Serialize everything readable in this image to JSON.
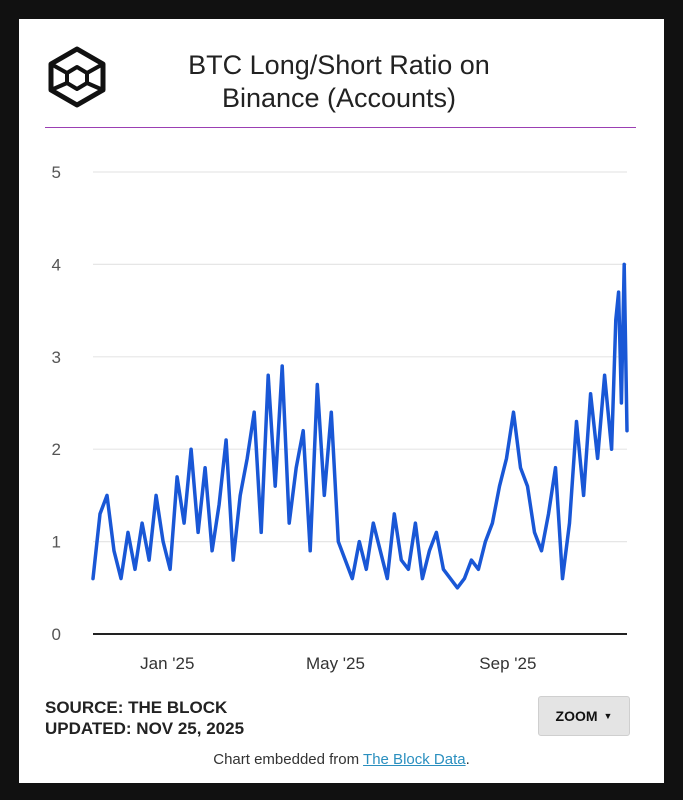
{
  "header": {
    "title_line1": "BTC Long/Short Ratio on",
    "title_line2": "Binance (Accounts)"
  },
  "logo": {
    "icon": "the-block-cube-logo-icon"
  },
  "colors": {
    "line": "#1957d6",
    "rule": "#9b3fb3",
    "grid": "#e6e6e6",
    "axis": "#222222"
  },
  "footer": {
    "source_label": "SOURCE: THE BLOCK",
    "updated_label": "UPDATED: NOV 25, 2025",
    "zoom_label": "ZOOM",
    "zoom_icon": "caret-down-icon",
    "embed_prefix": "Chart embedded from ",
    "embed_link": "The Block Data",
    "embed_suffix": "."
  },
  "chart_data": {
    "type": "line",
    "title": "BTC Long/Short Ratio on Binance (Accounts)",
    "xlabel": "",
    "ylabel": "",
    "ylim": [
      0,
      5
    ],
    "yticks": [
      "0",
      "1",
      "2",
      "3",
      "4",
      "5"
    ],
    "xticks": [
      "Jan '25",
      "May '25",
      "Sep '25"
    ],
    "x_range": [
      "2024-11-09",
      "2025-11-25"
    ],
    "grid": true,
    "legend": "none",
    "series": [
      {
        "name": "",
        "x": [
          "2024-11-09",
          "2024-11-14",
          "2024-11-19",
          "2024-11-24",
          "2024-11-29",
          "2024-12-04",
          "2024-12-09",
          "2024-12-14",
          "2024-12-19",
          "2024-12-24",
          "2024-12-29",
          "2025-01-03",
          "2025-01-08",
          "2025-01-13",
          "2025-01-18",
          "2025-01-23",
          "2025-01-28",
          "2025-02-02",
          "2025-02-07",
          "2025-02-12",
          "2025-02-17",
          "2025-02-22",
          "2025-02-27",
          "2025-03-04",
          "2025-03-09",
          "2025-03-14",
          "2025-03-19",
          "2025-03-24",
          "2025-03-29",
          "2025-04-03",
          "2025-04-08",
          "2025-04-13",
          "2025-04-18",
          "2025-04-23",
          "2025-04-28",
          "2025-05-03",
          "2025-05-08",
          "2025-05-13",
          "2025-05-18",
          "2025-05-23",
          "2025-05-28",
          "2025-06-02",
          "2025-06-07",
          "2025-06-12",
          "2025-06-17",
          "2025-06-22",
          "2025-06-27",
          "2025-07-02",
          "2025-07-07",
          "2025-07-12",
          "2025-07-17",
          "2025-07-22",
          "2025-07-27",
          "2025-08-01",
          "2025-08-06",
          "2025-08-11",
          "2025-08-16",
          "2025-08-21",
          "2025-08-26",
          "2025-08-31",
          "2025-09-05",
          "2025-09-10",
          "2025-09-15",
          "2025-09-20",
          "2025-09-25",
          "2025-09-30",
          "2025-10-05",
          "2025-10-10",
          "2025-10-15",
          "2025-10-20",
          "2025-10-25",
          "2025-10-30",
          "2025-11-04",
          "2025-11-09",
          "2025-11-14",
          "2025-11-17",
          "2025-11-19",
          "2025-11-21",
          "2025-11-23",
          "2025-11-25"
        ],
        "values": [
          0.6,
          1.3,
          1.5,
          0.9,
          0.6,
          1.1,
          0.7,
          1.2,
          0.8,
          1.5,
          1.0,
          0.7,
          1.7,
          1.2,
          2.0,
          1.1,
          1.8,
          0.9,
          1.4,
          2.1,
          0.8,
          1.5,
          1.9,
          2.4,
          1.1,
          2.8,
          1.6,
          2.9,
          1.2,
          1.8,
          2.2,
          0.9,
          2.7,
          1.5,
          2.4,
          1.0,
          0.8,
          0.6,
          1.0,
          0.7,
          1.2,
          0.9,
          0.6,
          1.3,
          0.8,
          0.7,
          1.2,
          0.6,
          0.9,
          1.1,
          0.7,
          0.6,
          0.5,
          0.6,
          0.8,
          0.7,
          1.0,
          1.2,
          1.6,
          1.9,
          2.4,
          1.8,
          1.6,
          1.1,
          0.9,
          1.3,
          1.8,
          0.6,
          1.2,
          2.3,
          1.5,
          2.6,
          1.9,
          2.8,
          2.0,
          3.4,
          3.7,
          2.5,
          4.0,
          2.2
        ]
      }
    ]
  }
}
